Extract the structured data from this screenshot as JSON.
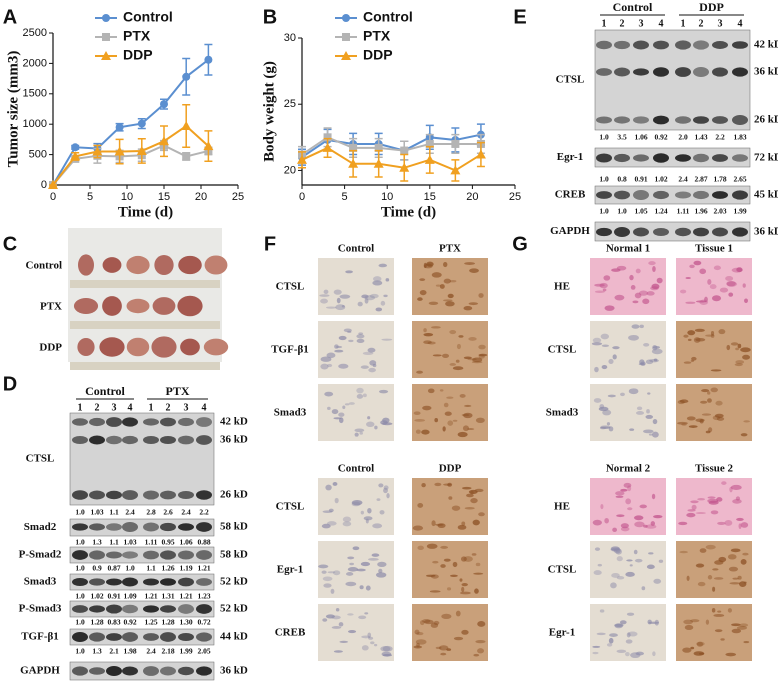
{
  "chart_data": [
    {
      "panel": "A",
      "type": "line",
      "xlabel": "Time (d)",
      "ylabel": "Tumor size (mm3)",
      "x": [
        0,
        3,
        6,
        9,
        12,
        15,
        18,
        21
      ],
      "xlim": [
        0,
        25
      ],
      "xticks": [
        0,
        5,
        10,
        15,
        20,
        25
      ],
      "ylim": [
        0,
        2500
      ],
      "yticks": [
        0,
        500,
        1000,
        1500,
        2000,
        2500
      ],
      "legend": "upper left",
      "series": [
        {
          "name": "Control",
          "color": "#5b8fd0",
          "marker": "circle",
          "values": [
            0,
            620,
            600,
            950,
            1010,
            1330,
            1780,
            2060
          ],
          "errors": [
            0,
            30,
            80,
            60,
            80,
            80,
            300,
            250
          ]
        },
        {
          "name": "PTX",
          "color": "#b4b4b4",
          "marker": "square",
          "values": [
            0,
            430,
            480,
            470,
            490,
            650,
            470,
            560
          ],
          "errors": [
            0,
            50,
            120,
            100,
            100,
            80,
            60,
            60
          ]
        },
        {
          "name": "DDP",
          "color": "#f0a020",
          "marker": "triangle",
          "values": [
            0,
            470,
            550,
            550,
            560,
            720,
            970,
            640
          ],
          "errors": [
            0,
            60,
            100,
            200,
            200,
            250,
            350,
            250
          ]
        }
      ]
    },
    {
      "panel": "B",
      "type": "line",
      "xlabel": "Time (d)",
      "ylabel": "Body weight (g)",
      "x": [
        0,
        3,
        6,
        9,
        12,
        15,
        18,
        21
      ],
      "xlim": [
        0,
        25
      ],
      "xticks": [
        0,
        5,
        10,
        15,
        20,
        25
      ],
      "ylim": [
        18.9,
        30
      ],
      "yticks": [
        20,
        25,
        30
      ],
      "legend": "upper left",
      "series": [
        {
          "name": "Control",
          "color": "#5b8fd0",
          "marker": "circle",
          "values": [
            21,
            22.3,
            22,
            22,
            21.5,
            22.5,
            22.3,
            22.7
          ],
          "errors": [
            0.6,
            0.8,
            0.8,
            0.8,
            0.7,
            0.9,
            0.9,
            0.8
          ]
        },
        {
          "name": "PTX",
          "color": "#b4b4b4",
          "marker": "square",
          "values": [
            21.2,
            22.5,
            21.7,
            21.7,
            21.5,
            22,
            22,
            22
          ],
          "errors": [
            0.6,
            0.7,
            0.7,
            0.7,
            0.7,
            0.7,
            0.7,
            0.7
          ]
        },
        {
          "name": "DDP",
          "color": "#f0a020",
          "marker": "triangle",
          "values": [
            20.8,
            21.7,
            20.5,
            20.5,
            20.2,
            20.8,
            20,
            21.2
          ],
          "errors": [
            0.6,
            0.7,
            1,
            1,
            1,
            1,
            0.8,
            0.9
          ]
        }
      ]
    }
  ],
  "panel_c": {
    "label": "C",
    "groups": [
      "Control",
      "PTX",
      "DDP"
    ]
  },
  "panel_d": {
    "label": "D",
    "groups": [
      "Control",
      "PTX"
    ],
    "lanes": [
      "1",
      "2",
      "3",
      "4",
      "1",
      "2",
      "3",
      "4"
    ],
    "rows": [
      {
        "protein": "CTSL",
        "sizes": [
          "42 kD",
          "36 kD",
          "26 kD"
        ],
        "quant": [
          "1.0",
          "1.03",
          "1.1",
          "2.4",
          "2.8",
          "2.6",
          "2.4",
          "2.2"
        ]
      },
      {
        "protein": "Smad2",
        "sizes": [
          "58 kD"
        ],
        "quant": [
          "1.0",
          "1.3",
          "1.1",
          "1.03",
          "1.11",
          "0.95",
          "1.06",
          "0.88"
        ]
      },
      {
        "protein": "P-Smad2",
        "sizes": [
          "58 kD"
        ],
        "quant": [
          "1.0",
          "0.9",
          "0.87",
          "1.0",
          "1.1",
          "1.26",
          "1.19",
          "1.21"
        ]
      },
      {
        "protein": "Smad3",
        "sizes": [
          "52 kD"
        ],
        "quant": [
          "1.0",
          "1.02",
          "0.91",
          "1.09",
          "1.21",
          "1.31",
          "1.21",
          "1.23"
        ]
      },
      {
        "protein": "P-Smad3",
        "sizes": [
          "52 kD"
        ],
        "quant": [
          "1.0",
          "1.28",
          "0.83",
          "0.92",
          "1.25",
          "1.28",
          "1.30",
          "0.72"
        ]
      },
      {
        "protein": "TGF-β1",
        "sizes": [
          "44 kD"
        ],
        "quant": [
          "1.0",
          "1.3",
          "2.1",
          "1.98",
          "2.4",
          "2.18",
          "1.99",
          "2.05"
        ]
      },
      {
        "protein": "GAPDH",
        "sizes": [
          "36 kD"
        ]
      }
    ]
  },
  "panel_e": {
    "label": "E",
    "groups": [
      "Control",
      "DDP"
    ],
    "lanes": [
      "1",
      "2",
      "3",
      "4",
      "1",
      "2",
      "3",
      "4"
    ],
    "rows": [
      {
        "protein": "CTSL",
        "sizes": [
          "42 kD",
          "36 kD",
          "26 kD"
        ],
        "quant": [
          "1.0",
          "3.5",
          "1.06",
          "0.92",
          "2.0",
          "1.43",
          "2.2",
          "1.83"
        ]
      },
      {
        "protein": "Egr-1",
        "sizes": [
          "72 kD"
        ],
        "quant": [
          "1.0",
          "0.8",
          "0.91",
          "1.02",
          "2.4",
          "2.87",
          "1.78",
          "2.65"
        ]
      },
      {
        "protein": "CREB",
        "sizes": [
          "45 kD"
        ],
        "quant": [
          "1.0",
          "1.0",
          "1.05",
          "1.24",
          "1.11",
          "1.96",
          "2.03",
          "1.99"
        ]
      },
      {
        "protein": "GAPDH",
        "sizes": [
          "36 kD"
        ]
      }
    ]
  },
  "panel_f": {
    "label": "F",
    "sections": [
      {
        "columns": [
          "Control",
          "PTX"
        ],
        "rows": [
          "CTSL",
          "TGF-β1",
          "Smad3"
        ]
      },
      {
        "columns": [
          "Control",
          "DDP"
        ],
        "rows": [
          "CTSL",
          "Egr-1",
          "CREB"
        ]
      }
    ]
  },
  "panel_g": {
    "label": "G",
    "sections": [
      {
        "columns": [
          "Normal 1",
          "Tissue 1"
        ],
        "rows": [
          "HE",
          "CTSL",
          "Smad3"
        ]
      },
      {
        "columns": [
          "Normal 2",
          "Tissue 2"
        ],
        "rows": [
          "HE",
          "CTSL",
          "Egr-1"
        ]
      }
    ]
  }
}
